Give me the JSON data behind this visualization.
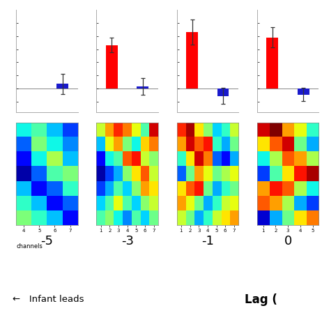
{
  "bar_data": [
    {
      "lag": "-5",
      "show_red": false,
      "red_val": 0.0,
      "red_err": 0.0,
      "blue_val": 0.018,
      "blue_err": 0.038
    },
    {
      "lag": "-3",
      "show_red": true,
      "red_val": 0.165,
      "red_err": 0.028,
      "blue_val": 0.008,
      "blue_err": 0.032
    },
    {
      "lag": "-1",
      "show_red": true,
      "red_val": 0.215,
      "red_err": 0.048,
      "blue_val": -0.028,
      "blue_err": 0.03
    },
    {
      "lag": "0",
      "show_red": true,
      "red_val": 0.195,
      "red_err": 0.038,
      "blue_val": -0.022,
      "blue_err": 0.025
    }
  ],
  "lag_labels": [
    "-5",
    "-3",
    "-1",
    "0"
  ],
  "red_color": "#ff0000",
  "blue_color": "#1a1acc",
  "bar_ylim": [
    -0.09,
    0.3
  ],
  "vmin": 0.18,
  "vmax": 0.72,
  "cmap": "jet",
  "heatmap_xtick_labels": [
    [
      "4",
      "5",
      "6",
      "7"
    ],
    [
      "1",
      "2",
      "3",
      "4",
      "5",
      "6",
      "7"
    ],
    [
      "1",
      "2",
      "3",
      "4",
      "5",
      "6",
      "7"
    ],
    [
      "1",
      "2",
      "3",
      "4",
      "5"
    ]
  ],
  "heatmap_data_0": [
    [
      0.38,
      0.42,
      0.35,
      0.28
    ],
    [
      0.3,
      0.45,
      0.38,
      0.32
    ],
    [
      0.25,
      0.38,
      0.48,
      0.35
    ],
    [
      0.2,
      0.3,
      0.42,
      0.45
    ],
    [
      0.35,
      0.25,
      0.3,
      0.4
    ],
    [
      0.4,
      0.35,
      0.25,
      0.3
    ],
    [
      0.45,
      0.4,
      0.35,
      0.25
    ]
  ],
  "heatmap_data_1": [
    [
      0.5,
      0.58,
      0.65,
      0.6,
      0.52,
      0.42,
      0.68
    ],
    [
      0.35,
      0.52,
      0.58,
      0.45,
      0.38,
      0.55,
      0.6
    ],
    [
      0.25,
      0.38,
      0.42,
      0.62,
      0.66,
      0.5,
      0.46
    ],
    [
      0.2,
      0.28,
      0.34,
      0.46,
      0.54,
      0.62,
      0.5
    ],
    [
      0.28,
      0.34,
      0.42,
      0.36,
      0.46,
      0.58,
      0.54
    ],
    [
      0.36,
      0.42,
      0.52,
      0.42,
      0.36,
      0.46,
      0.5
    ],
    [
      0.42,
      0.46,
      0.38,
      0.32,
      0.42,
      0.36,
      0.44
    ]
  ],
  "heatmap_data_2": [
    [
      0.65,
      0.7,
      0.54,
      0.46,
      0.36,
      0.4,
      0.5
    ],
    [
      0.58,
      0.68,
      0.62,
      0.66,
      0.4,
      0.34,
      0.44
    ],
    [
      0.4,
      0.54,
      0.68,
      0.6,
      0.3,
      0.25,
      0.34
    ],
    [
      0.3,
      0.44,
      0.58,
      0.52,
      0.44,
      0.48,
      0.52
    ],
    [
      0.54,
      0.62,
      0.66,
      0.44,
      0.34,
      0.4,
      0.44
    ],
    [
      0.58,
      0.52,
      0.44,
      0.34,
      0.4,
      0.5,
      0.52
    ],
    [
      0.5,
      0.44,
      0.34,
      0.4,
      0.5,
      0.54,
      0.58
    ]
  ],
  "heatmap_data_3": [
    [
      0.68,
      0.72,
      0.58,
      0.52,
      0.4
    ],
    [
      0.54,
      0.62,
      0.68,
      0.44,
      0.34
    ],
    [
      0.38,
      0.48,
      0.62,
      0.58,
      0.48
    ],
    [
      0.28,
      0.42,
      0.54,
      0.66,
      0.7
    ],
    [
      0.58,
      0.66,
      0.62,
      0.48,
      0.38
    ],
    [
      0.62,
      0.58,
      0.48,
      0.34,
      0.28
    ],
    [
      0.22,
      0.34,
      0.44,
      0.54,
      0.6
    ]
  ],
  "bottom_text_left": "←   Infant leads",
  "bottom_text_right": "Lag (",
  "channels_label": "channels"
}
